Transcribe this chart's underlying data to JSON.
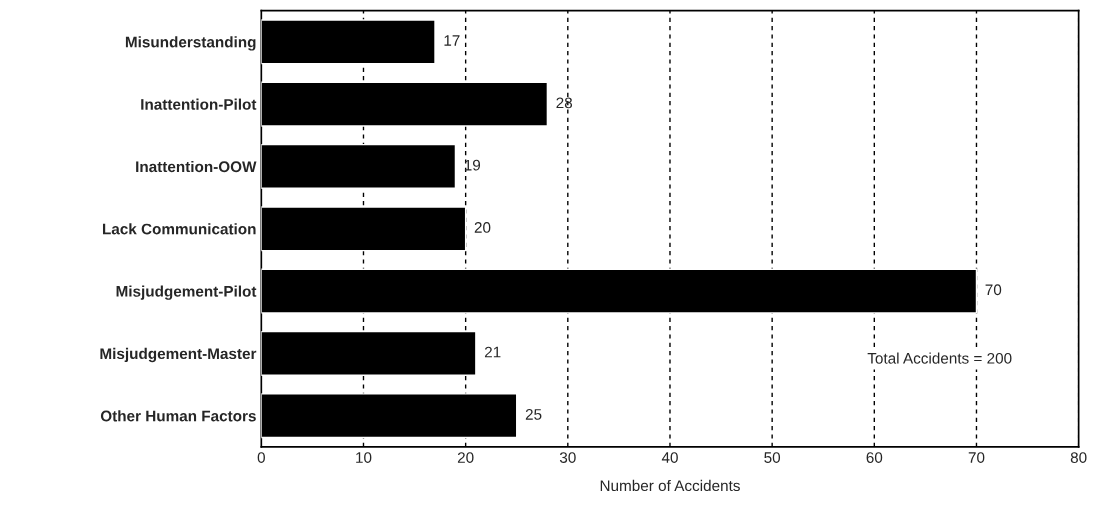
{
  "chart_data": {
    "type": "bar",
    "orientation": "horizontal",
    "xlabel": "Number of Accidents",
    "categories": [
      "Misunderstanding",
      "Inattention-Pilot",
      "Inattention-OOW",
      "Lack Communication",
      "Misjudgement-Pilot",
      "Misjudgement-Master",
      "Other Human Factors"
    ],
    "values": [
      17,
      28,
      19,
      20,
      70,
      21,
      25
    ],
    "color": "#000000",
    "xlim": [
      0,
      80
    ],
    "xticks": [
      0,
      10,
      20,
      30,
      40,
      50,
      60,
      70,
      80
    ],
    "grid": "x",
    "data_labels": true,
    "annotations": [
      "Total Accidents = 200"
    ]
  }
}
